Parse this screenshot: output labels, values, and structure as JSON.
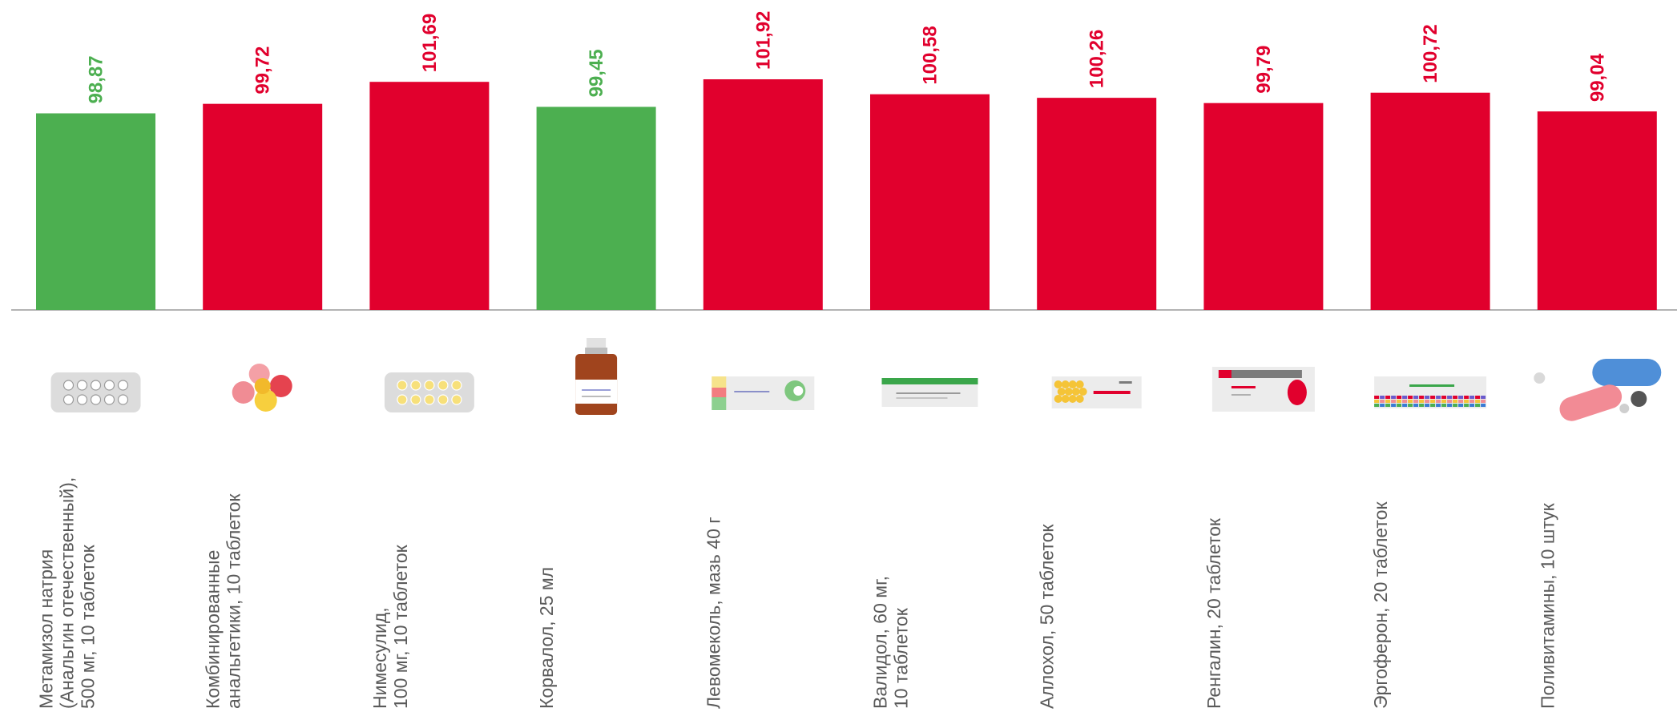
{
  "chart_data": {
    "type": "bar",
    "title": "",
    "xlabel": "",
    "ylabel": "",
    "ylim": [
      0,
      101.92
    ],
    "grid": false,
    "legend": "none",
    "colors": {
      "above_100": "#E1002D",
      "below_100": "#4CAF50",
      "baseline": "#9a9a9a",
      "label": "#5a5a5a"
    },
    "bars": [
      {
        "label_lines": [
          "Метамизол натрия",
          "(Анальгин отечественный),",
          "500 мг, 10 таблеток"
        ],
        "value": 98.87,
        "value_text": "98,87",
        "color": "#4CAF50",
        "icon": "blister-pack-icon"
      },
      {
        "label_lines": [
          "Комбинированные",
          "анальгетики, 10 таблеток"
        ],
        "value": 99.72,
        "value_text": "99,72",
        "color": "#E1002D",
        "icon": "pills-icon"
      },
      {
        "label_lines": [
          "Нимесулид,",
          "100 мг, 10 таблеток"
        ],
        "value": 101.69,
        "value_text": "101,69",
        "color": "#E1002D",
        "icon": "yellow-blister-pack-icon"
      },
      {
        "label_lines": [
          "Корвалол, 25 мл"
        ],
        "value": 99.45,
        "value_text": "99,45",
        "color": "#4CAF50",
        "icon": "medicine-bottle-icon"
      },
      {
        "label_lines": [
          "Левомеколь, мазь 40 г"
        ],
        "value": 101.92,
        "value_text": "101,92",
        "color": "#E1002D",
        "icon": "ointment-box-icon"
      },
      {
        "label_lines": [
          "Валидол, 60 мг,",
          "10 таблеток"
        ],
        "value": 100.58,
        "value_text": "100,58",
        "color": "#E1002D",
        "icon": "green-box-icon"
      },
      {
        "label_lines": [
          "Аллохол, 50 таблеток"
        ],
        "value": 100.26,
        "value_text": "100,26",
        "color": "#E1002D",
        "icon": "tablet-box-icon"
      },
      {
        "label_lines": [
          "Ренгалин, 20 таблеток"
        ],
        "value": 99.79,
        "value_text": "99,79",
        "color": "#E1002D",
        "icon": "red-box-icon"
      },
      {
        "label_lines": [
          "Эргоферон, 20 таблеток"
        ],
        "value": 100.72,
        "value_text": "100,72",
        "color": "#E1002D",
        "icon": "multicolor-box-icon"
      },
      {
        "label_lines": [
          "Поливитамины, 10 штук"
        ],
        "value": 99.04,
        "value_text": "99,04",
        "color": "#E1002D",
        "icon": "capsules-icon"
      }
    ]
  }
}
